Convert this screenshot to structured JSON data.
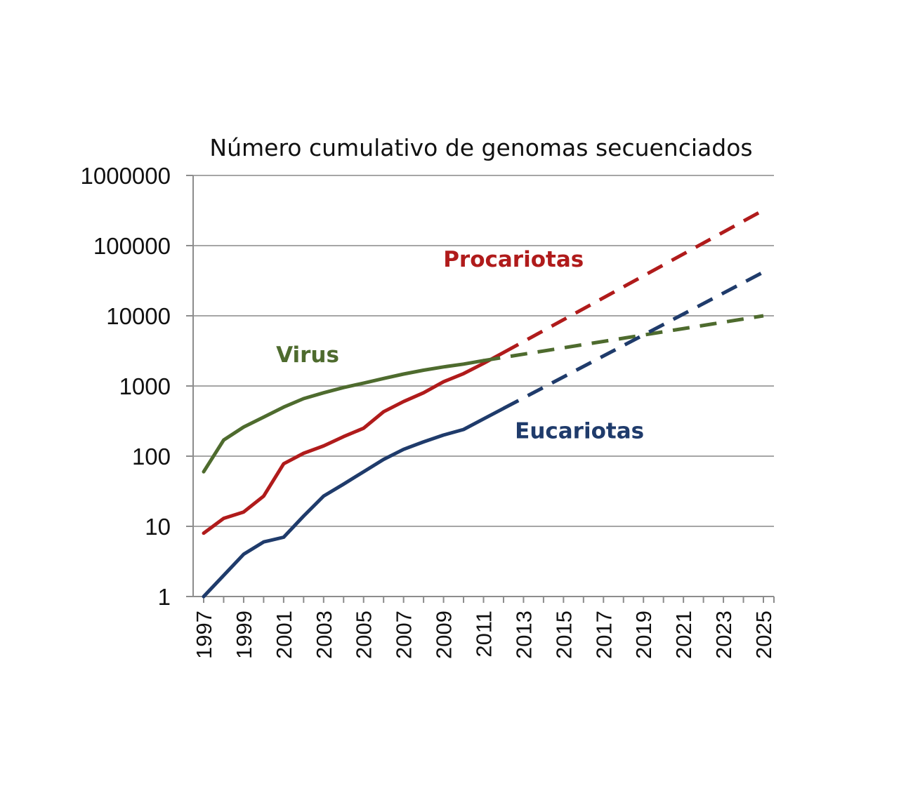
{
  "chart_data": {
    "type": "line",
    "title": "Número cumulativo de genomas secuenciados",
    "xlabel": "",
    "ylabel": "",
    "y_scale": "log",
    "ylim": [
      1,
      1000000
    ],
    "xlim": [
      1997,
      2025
    ],
    "grid": true,
    "y_ticks": [
      "1",
      "10",
      "100",
      "1000",
      "10000",
      "100000",
      "1000000"
    ],
    "x_ticks": [
      "1997",
      "1999",
      "2001",
      "2003",
      "2005",
      "2007",
      "2009",
      "2011",
      "2013",
      "2015",
      "2017",
      "2019",
      "2021",
      "2023",
      "2025"
    ],
    "series": [
      {
        "name": "Procariotas",
        "color": "#b01b1b",
        "observed": {
          "x": [
            1997,
            1998,
            1999,
            2000,
            2001,
            2002,
            2003,
            2004,
            2005,
            2006,
            2007,
            2008,
            2009,
            2010,
            2011,
            2012
          ],
          "y": [
            8,
            13,
            16,
            27,
            78,
            110,
            140,
            190,
            250,
            430,
            600,
            800,
            1150,
            1500,
            2100,
            3000
          ]
        },
        "projected": {
          "x": [
            2012,
            2025
          ],
          "y": [
            3000,
            320000
          ]
        }
      },
      {
        "name": "Virus",
        "color": "#4e6b2e",
        "observed": {
          "x": [
            1997,
            1998,
            1999,
            2000,
            2001,
            2002,
            2003,
            2004,
            2005,
            2006,
            2007,
            2008,
            2009,
            2010,
            2011
          ],
          "y": [
            60,
            170,
            260,
            360,
            500,
            660,
            800,
            950,
            1100,
            1280,
            1480,
            1680,
            1870,
            2050,
            2300
          ]
        },
        "projected": {
          "x": [
            2011,
            2025
          ],
          "y": [
            2300,
            10000
          ]
        }
      },
      {
        "name": "Eucariotas",
        "color": "#1f3b6b",
        "observed": {
          "x": [
            1997,
            1998,
            1999,
            2000,
            2001,
            2002,
            2003,
            2004,
            2005,
            2006,
            2007,
            2008,
            2009,
            2010,
            2011,
            2012
          ],
          "y": [
            1,
            2,
            4,
            6,
            7,
            14,
            27,
            40,
            60,
            90,
            125,
            160,
            200,
            240,
            340,
            480
          ]
        },
        "projected": {
          "x": [
            2012,
            2025
          ],
          "y": [
            480,
            42000
          ]
        }
      }
    ]
  }
}
